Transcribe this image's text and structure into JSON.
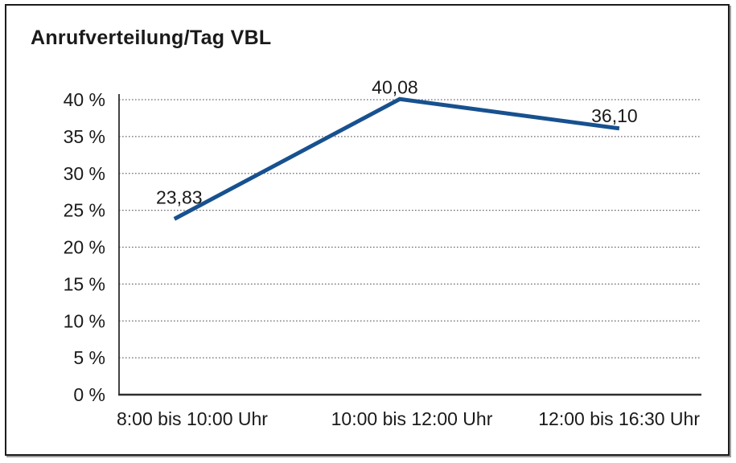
{
  "title": "Anrufverteilung/Tag VBL",
  "chart_data": {
    "type": "line",
    "title": "Anrufverteilung/Tag VBL",
    "categories": [
      "8:00 bis 10:00 Uhr",
      "10:00 bis 12:00 Uhr",
      "12:00 bis 16:30 Uhr"
    ],
    "series": [
      {
        "name": "Anrufverteilung/Tag VBL",
        "values": [
          23.83,
          40.08,
          36.1
        ],
        "point_labels": [
          "23,83",
          "40,08",
          "36,10"
        ],
        "color": "#17518f"
      }
    ],
    "xlabel": "",
    "ylabel": "",
    "y_ticks": [
      0,
      5,
      10,
      15,
      20,
      25,
      30,
      35,
      40
    ],
    "y_tick_labels": [
      "0 %",
      "5 %",
      "10 %",
      "15 %",
      "20 %",
      "25 %",
      "30 %",
      "35 %",
      "40 %"
    ],
    "ylim": [
      0,
      40
    ],
    "grid": "horizontal-dotted",
    "legend": "none"
  },
  "colors": {
    "line": "#17518f",
    "grid": "#6b6b6b",
    "axis": "#2e2e2e",
    "text": "#1a1a1a",
    "frame_border": "#1c1c1c",
    "background": "#ffffff"
  }
}
